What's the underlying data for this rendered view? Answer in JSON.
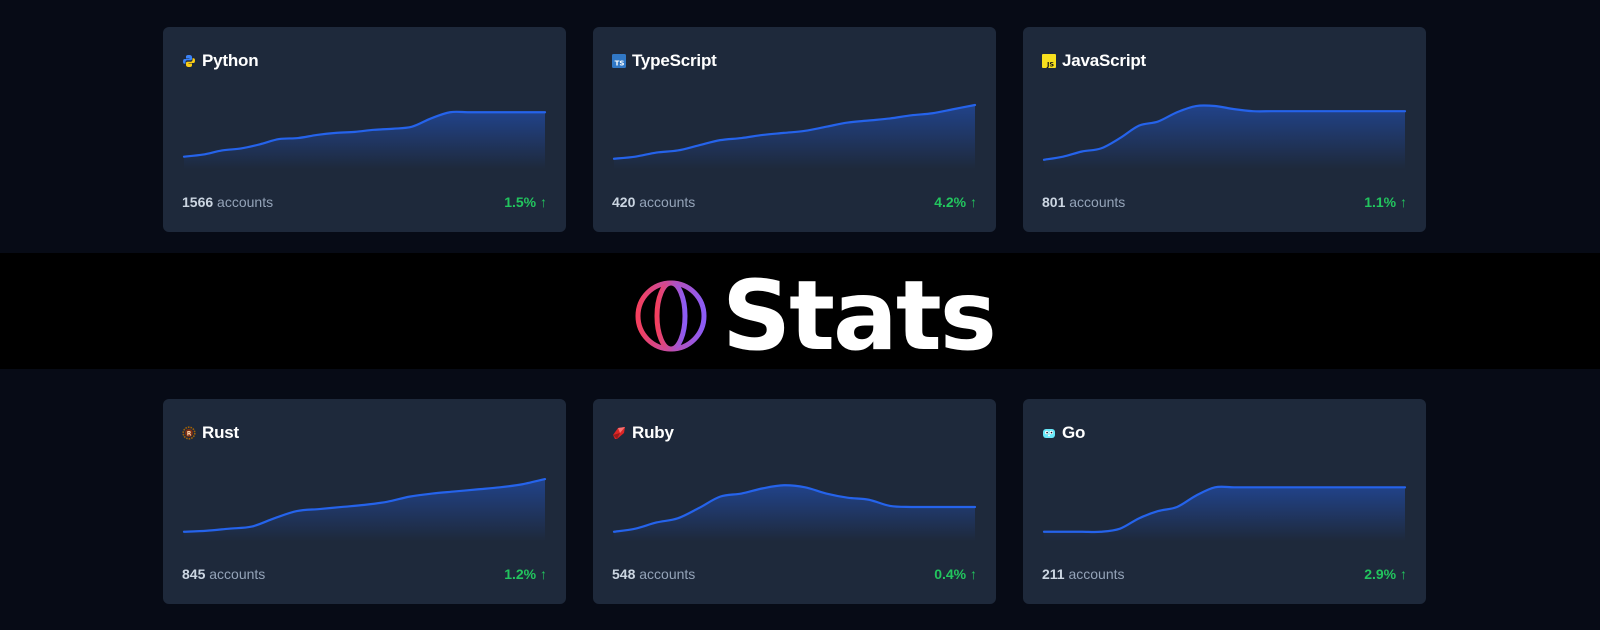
{
  "brand": {
    "title": "Stats",
    "logo_icon": "globe-gradient-icon",
    "colors": {
      "gradient_start": "#f43f5e",
      "gradient_end": "#8b5cf6"
    }
  },
  "colors": {
    "background": "#070b16",
    "band": "#000000",
    "card": "#1e293b",
    "line": "#2563eb",
    "positive": "#22c55e",
    "muted": "#94a3b8"
  },
  "cards": [
    {
      "name": "Python",
      "icon": "python-logo-icon",
      "accounts": "1566",
      "accounts_label": "accounts",
      "delta": "1.5% ↑",
      "trend": [
        10,
        12,
        16,
        18,
        22,
        27,
        28,
        31,
        33,
        34,
        36,
        37,
        39,
        47,
        53,
        53,
        53,
        53,
        53,
        53
      ]
    },
    {
      "name": "TypeScript",
      "icon": "typescript-logo-icon",
      "accounts": "420",
      "accounts_label": "accounts",
      "delta": "4.2% ↑",
      "trend": [
        8,
        10,
        14,
        16,
        21,
        26,
        28,
        31,
        33,
        35,
        39,
        43,
        45,
        47,
        50,
        52,
        56,
        60
      ]
    },
    {
      "name": "JavaScript",
      "icon": "javascript-logo-icon",
      "accounts": "801",
      "accounts_label": "accounts",
      "delta": "1.1% ↑",
      "trend": [
        7,
        10,
        15,
        18,
        28,
        40,
        44,
        53,
        59,
        59,
        56,
        54,
        54,
        54,
        54,
        54,
        54,
        54,
        54,
        54
      ]
    },
    {
      "name": "Rust",
      "icon": "rust-logo-icon",
      "accounts": "845",
      "accounts_label": "accounts",
      "delta": "1.2% ↑",
      "trend": [
        7,
        8,
        10,
        12,
        20,
        27,
        29,
        31,
        33,
        36,
        41,
        44,
        46,
        48,
        50,
        53,
        58
      ]
    },
    {
      "name": "Ruby",
      "icon": "ruby-logo-icon",
      "accounts": "548",
      "accounts_label": "accounts",
      "delta": "0.4% ↑",
      "trend": [
        7,
        10,
        16,
        20,
        30,
        41,
        44,
        49,
        52,
        50,
        44,
        40,
        38,
        32,
        31,
        31,
        31,
        31
      ]
    },
    {
      "name": "Go",
      "icon": "go-gopher-icon",
      "accounts": "211",
      "accounts_label": "accounts",
      "delta": "2.9% ↑",
      "trend": [
        7,
        7,
        7,
        7,
        10,
        20,
        27,
        31,
        42,
        50,
        50,
        50,
        50,
        50,
        50,
        50,
        50,
        50,
        50,
        50
      ]
    }
  ]
}
